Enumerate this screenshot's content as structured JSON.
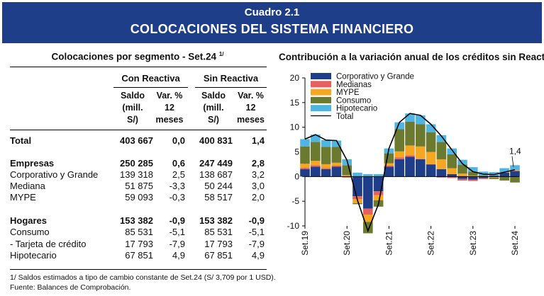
{
  "header": {
    "number": "Cuadro 2.1",
    "title": "COLOCACIONES DEL SISTEMA FINANCIERO"
  },
  "table": {
    "title": "Colocaciones por segmento - Set.24",
    "title_note": "1/",
    "group_headers": [
      "Con Reactiva",
      "Sin Reactiva"
    ],
    "sub_headers": {
      "saldo": [
        "Saldo",
        "(mill.",
        "S/)"
      ],
      "var": [
        "Var. %",
        "12",
        "meses"
      ]
    },
    "rows": [
      {
        "label": "Total",
        "bold": true,
        "values": [
          "403 667",
          "0,0",
          "400 831",
          "1,4"
        ]
      },
      {
        "label": "Empresas",
        "bold": true,
        "values": [
          "250 285",
          "0,6",
          "247 449",
          "2,8"
        ]
      },
      {
        "label": "Corporativo y Grande",
        "bold": false,
        "values": [
          "139 318",
          "2,5",
          "138 687",
          "3,2"
        ]
      },
      {
        "label": "Mediana",
        "bold": false,
        "values": [
          "51 875",
          "-3,3",
          "50 244",
          "3,0"
        ]
      },
      {
        "label": "MYPE",
        "bold": false,
        "values": [
          "59 093",
          "-0,3",
          "58 517",
          "2,0"
        ]
      },
      {
        "label": "Hogares",
        "bold": true,
        "values": [
          "153 382",
          "-0,9",
          "153 382",
          "-0,9"
        ]
      },
      {
        "label": "Consumo",
        "bold": false,
        "values": [
          "85 531",
          "-5,1",
          "85 531",
          "-5,1"
        ]
      },
      {
        "label": "- Tarjeta de crédito",
        "bold": false,
        "values": [
          "17 793",
          "-7,9",
          "17 793",
          "-7,9"
        ]
      },
      {
        "label": "Hipotecario",
        "bold": false,
        "values": [
          "67 851",
          "4,9",
          "67 851",
          "4,9"
        ]
      }
    ]
  },
  "chart_title": "Contribución a la variación anual de los créditos sin Reactiva",
  "chart_data": {
    "type": "area",
    "x_ticks": [
      "Set.19",
      "Set.20",
      "Set.21",
      "Set.22",
      "Set.23",
      "Set.24"
    ],
    "ylim": [
      -10,
      20
    ],
    "yticks": [
      -10,
      -5,
      0,
      5,
      10,
      15,
      20
    ],
    "annotation": "1,4",
    "colors": {
      "Corporativo y Grande": "#1f3e8a",
      "Medianas": "#e8605e",
      "MYPE": "#f5a623",
      "Consumo": "#6b7a2e",
      "Hipotecario": "#4fb6e3",
      "Total": "#000000"
    },
    "series": [
      {
        "name": "Corporativo y Grande",
        "values": [
          1.5,
          2.0,
          1.5,
          2.0,
          0.0,
          -4.0,
          -6.5,
          -3.0,
          2.0,
          3.5,
          4.0,
          3.5,
          2.5,
          1.5,
          0.5,
          -0.5,
          -0.6,
          -0.3,
          0.2,
          0.8,
          1.1
        ]
      },
      {
        "name": "Medianas",
        "values": [
          0.3,
          0.3,
          0.2,
          0.2,
          -0.2,
          -0.6,
          -1.2,
          -0.8,
          0.2,
          0.4,
          0.3,
          0.1,
          0.0,
          -0.2,
          -0.3,
          -0.3,
          -0.3,
          -0.2,
          -0.1,
          0.1,
          0.1
        ]
      },
      {
        "name": "MYPE",
        "values": [
          0.8,
          0.9,
          0.8,
          0.6,
          0.3,
          -0.8,
          -1.5,
          -1.0,
          0.5,
          1.2,
          2.0,
          2.5,
          2.5,
          2.0,
          1.2,
          0.6,
          0.2,
          0.0,
          -0.1,
          0.0,
          0.1
        ]
      },
      {
        "name": "Consumo",
        "values": [
          3.5,
          3.8,
          3.5,
          3.2,
          2.0,
          -0.2,
          -2.3,
          -1.3,
          2.0,
          4.5,
          4.8,
          4.5,
          4.0,
          3.5,
          2.8,
          1.8,
          0.8,
          0.2,
          -0.3,
          -0.8,
          -1.2
        ]
      },
      {
        "name": "Hipotecario",
        "values": [
          1.5,
          1.5,
          1.4,
          1.3,
          1.2,
          0.8,
          0.5,
          0.5,
          1.0,
          1.4,
          1.7,
          1.8,
          1.6,
          1.4,
          1.2,
          1.0,
          0.9,
          0.8,
          0.7,
          0.8,
          1.0
        ]
      }
    ],
    "total": {
      "name": "Total",
      "values": [
        7.6,
        8.5,
        7.4,
        7.3,
        3.3,
        -4.8,
        -11.0,
        -5.6,
        5.7,
        11.0,
        12.8,
        12.4,
        10.6,
        8.2,
        5.4,
        2.6,
        1.0,
        0.5,
        0.4,
        0.9,
        1.4
      ]
    }
  },
  "footnotes": [
    "1/ Saldos estimados a tipo de cambio constante de Set.24 (S/ 3,709 por 1 USD).",
    "Fuente: Balances de Comprobación."
  ]
}
